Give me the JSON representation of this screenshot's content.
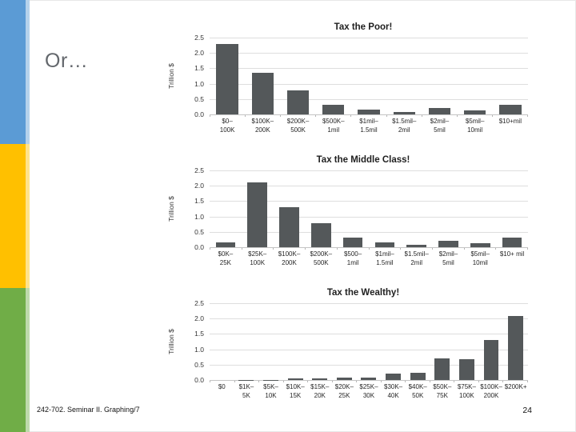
{
  "slide": {
    "heading": "Or…",
    "footer": "242-702. Seminar II. Graphing/7",
    "page_number": "24",
    "sidebar_colors": [
      "#5B9BD5",
      "#FFC000",
      "#70AD47"
    ],
    "bar_color": "#54585a",
    "gridline_color": "#dedede"
  },
  "chart_data": [
    {
      "type": "bar",
      "title": "Tax the Poor!",
      "ylabel": "Trillion $",
      "xlabel": "",
      "ylim": [
        0,
        2.5
      ],
      "yticks": [
        "2.5",
        "2.0",
        "1.5",
        "1.0",
        "0.5",
        "0.0"
      ],
      "grid": true,
      "legend": false,
      "categories": [
        "$0–\n100K",
        "$100K–\n200K",
        "$200K–\n500K",
        "$500K–\n1mil",
        "$1mil–\n1.5mil",
        "$1.5mil–\n2mil",
        "$2mil–\n5mil",
        "$5mil–\n10mil",
        "$10+mil"
      ],
      "values": [
        2.3,
        1.35,
        0.78,
        0.32,
        0.15,
        0.08,
        0.2,
        0.13,
        0.32
      ]
    },
    {
      "type": "bar",
      "title": "Tax the Middle Class!",
      "ylabel": "Trillion $",
      "xlabel": "",
      "ylim": [
        0,
        2.5
      ],
      "yticks": [
        "2.5",
        "2.0",
        "1.5",
        "1.0",
        "0.5",
        "0.0"
      ],
      "grid": true,
      "legend": false,
      "categories": [
        "$0K–\n25K",
        "$25K–\n100K",
        "$100K–\n200K",
        "$200K–\n500K",
        "$500–\n1mil",
        "$1mil–\n1.5mil",
        "$1.5mil–\n2mil",
        "$2mil–\n5mil",
        "$5mil–\n10mil",
        "$10+ mil"
      ],
      "values": [
        0.15,
        2.1,
        1.3,
        0.78,
        0.32,
        0.15,
        0.08,
        0.2,
        0.13,
        0.32
      ]
    },
    {
      "type": "bar",
      "title": "Tax the Wealthy!",
      "ylabel": "Trillion $",
      "xlabel": "",
      "ylim": [
        0,
        2.5
      ],
      "yticks": [
        "2.5",
        "2.0",
        "1.5",
        "1.0",
        "0.5",
        "0.0"
      ],
      "grid": true,
      "legend": false,
      "categories": [
        "$0",
        "$1K–\n5K",
        "$5K–\n10K",
        "$10K–\n15K",
        "$15K–\n20K",
        "$20K–\n25K",
        "$25K–\n30K",
        "$30K–\n40K",
        "$40K–\n50K",
        "$50K–\n75K",
        "$75K–\n100K",
        "$100K–\n200K",
        "$200K+"
      ],
      "values": [
        0,
        0.005,
        0.01,
        0.04,
        0.05,
        0.08,
        0.09,
        0.22,
        0.24,
        0.7,
        0.67,
        1.3,
        2.08
      ]
    }
  ]
}
